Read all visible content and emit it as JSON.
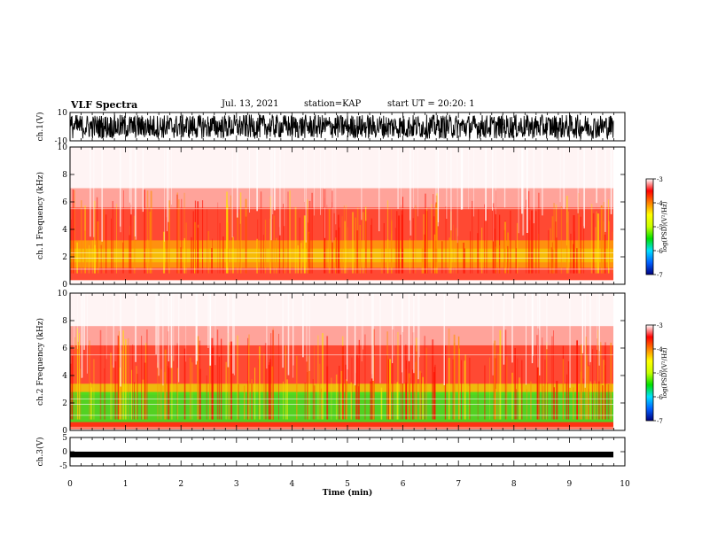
{
  "header": {
    "title": "VLF Spectra",
    "date": "Jul. 13, 2021",
    "station": "station=KAP",
    "start": "start UT =  20:20: 1"
  },
  "chart_data": [
    {
      "type": "line",
      "name": "ch1-waveform",
      "ylabel": "ch.1(V)",
      "ylim": [
        -10,
        10
      ],
      "yticks": [
        "10",
        "-10"
      ],
      "xlim": [
        0,
        10
      ],
      "signal_range": [
        -10,
        10
      ]
    },
    {
      "type": "heatmap",
      "name": "ch1-spectrogram",
      "ylabel": "ch.1 Frequency (kHz)",
      "ylim": [
        0,
        10
      ],
      "yticks": [
        "0",
        "2",
        "4",
        "6",
        "8",
        "10"
      ],
      "xlim": [
        0,
        10
      ],
      "colorbar": {
        "label": "log(PSD)(V²/Hz)",
        "range": [
          -7,
          -3
        ],
        "ticks": [
          "-3",
          "-4",
          "-5",
          "-6",
          "-7"
        ],
        "colors": [
          "#000080",
          "#0060ff",
          "#00e0ff",
          "#00e000",
          "#c8ff00",
          "#ffff00",
          "#ff8000",
          "#ff0000",
          "#ffffff"
        ]
      }
    },
    {
      "type": "heatmap",
      "name": "ch2-spectrogram",
      "ylabel": "ch.2 Frequency (kHz)",
      "ylim": [
        0,
        10
      ],
      "yticks": [
        "0",
        "2",
        "4",
        "6",
        "8",
        "10"
      ],
      "xlim": [
        0,
        10
      ],
      "colorbar": {
        "label": "log(PSD)(V²/Hz)",
        "range": [
          -7,
          -3
        ],
        "ticks": [
          "-3",
          "-4",
          "-5",
          "-6",
          "-7"
        ],
        "colors": [
          "#000080",
          "#0060ff",
          "#00e0ff",
          "#00e000",
          "#c8ff00",
          "#ffff00",
          "#ff8000",
          "#ff0000",
          "#ffffff"
        ]
      }
    },
    {
      "type": "line",
      "name": "ch3-waveform",
      "ylabel": "ch.3(V)",
      "ylim": [
        -5,
        5
      ],
      "yticks": [
        "5",
        "0",
        "-5"
      ],
      "xlim": [
        0,
        10
      ],
      "xlabel": "Time (min)",
      "xticks": [
        "0",
        "1",
        "2",
        "3",
        "4",
        "5",
        "6",
        "7",
        "8",
        "9",
        "10"
      ],
      "signal_range": [
        -2,
        0
      ]
    }
  ],
  "icons": [
    "none"
  ]
}
